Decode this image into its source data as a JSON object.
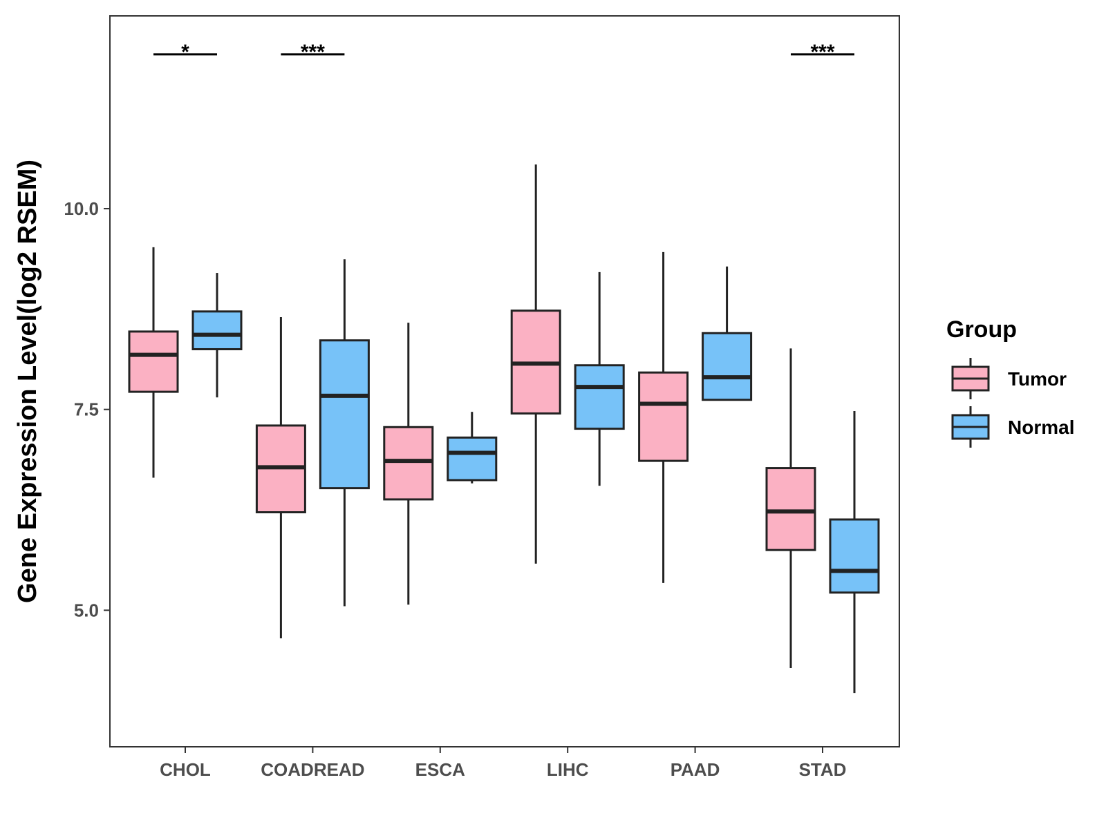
{
  "chart_data": {
    "type": "boxplot",
    "ylabel": "Gene Expression Level(log2 RSEM)",
    "xlabel": "",
    "ylim": [
      3.3,
      12.4
    ],
    "yticks": [
      5.0,
      7.5,
      10.0
    ],
    "ytick_labels": [
      "5.0",
      "7.5",
      "10.0"
    ],
    "categories": [
      "CHOL",
      "COADREAD",
      "ESCA",
      "LIHC",
      "PAAD",
      "STAD"
    ],
    "legend": {
      "title": "Group",
      "position": "right",
      "entries": [
        {
          "name": "Tumor",
          "color": "#fbb1c3"
        },
        {
          "name": "Normal",
          "color": "#77c2f8"
        }
      ]
    },
    "series": [
      {
        "name": "Tumor",
        "color": "#fbb1c3",
        "boxes": [
          {
            "category": "CHOL",
            "min": 6.65,
            "q1": 7.72,
            "median": 8.18,
            "q3": 8.47,
            "max": 9.52
          },
          {
            "category": "COADREAD",
            "min": 4.65,
            "q1": 6.22,
            "median": 6.78,
            "q3": 7.3,
            "max": 8.65
          },
          {
            "category": "ESCA",
            "min": 5.07,
            "q1": 6.38,
            "median": 6.86,
            "q3": 7.28,
            "max": 8.58
          },
          {
            "category": "LIHC",
            "min": 5.58,
            "q1": 7.45,
            "median": 8.07,
            "q3": 8.73,
            "max": 10.55
          },
          {
            "category": "PAAD",
            "min": 5.34,
            "q1": 6.86,
            "median": 7.57,
            "q3": 7.96,
            "max": 9.46
          },
          {
            "category": "STAD",
            "min": 4.28,
            "q1": 5.75,
            "median": 6.23,
            "q3": 6.77,
            "max": 8.26
          }
        ]
      },
      {
        "name": "Normal",
        "color": "#77c2f8",
        "boxes": [
          {
            "category": "CHOL",
            "min": 7.65,
            "q1": 8.25,
            "median": 8.43,
            "q3": 8.72,
            "max": 9.2
          },
          {
            "category": "COADREAD",
            "min": 5.05,
            "q1": 6.52,
            "median": 7.67,
            "q3": 8.36,
            "max": 9.37
          },
          {
            "category": "ESCA",
            "min": 6.58,
            "q1": 6.62,
            "median": 6.96,
            "q3": 7.15,
            "max": 7.47
          },
          {
            "category": "LIHC",
            "min": 6.55,
            "q1": 7.26,
            "median": 7.78,
            "q3": 8.05,
            "max": 9.21
          },
          {
            "category": "PAAD",
            "min": 7.62,
            "q1": 7.62,
            "median": 7.9,
            "q3": 8.45,
            "max": 9.28
          },
          {
            "category": "STAD",
            "min": 3.97,
            "q1": 5.22,
            "median": 5.49,
            "q3": 6.13,
            "max": 7.48
          }
        ]
      }
    ],
    "annotations": [
      {
        "category": "CHOL",
        "label": "*",
        "y": 11.92
      },
      {
        "category": "COADREAD",
        "label": "***",
        "y": 11.92
      },
      {
        "category": "STAD",
        "label": "***",
        "y": 11.92
      }
    ]
  }
}
